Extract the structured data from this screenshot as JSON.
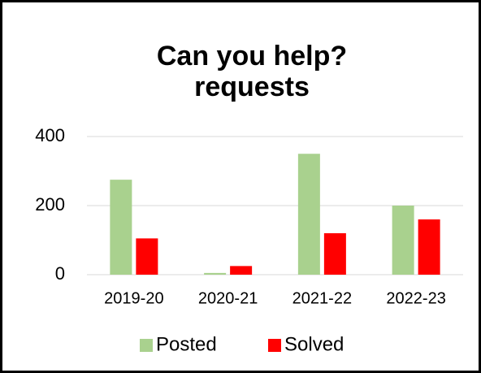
{
  "chart_data": {
    "type": "bar",
    "title": "Can you help? requests",
    "categories": [
      "2019-20",
      "2020-21",
      "2021-22",
      "2022-23"
    ],
    "series": [
      {
        "name": "Posted",
        "color": "#a9d18e",
        "values": [
          275,
          5,
          350,
          200
        ]
      },
      {
        "name": "Solved",
        "color": "#ff0000",
        "values": [
          105,
          25,
          120,
          160
        ]
      }
    ],
    "ylim": [
      0,
      400
    ],
    "yticks": [
      0,
      200,
      400
    ],
    "grid": true,
    "legend": "bottom"
  }
}
